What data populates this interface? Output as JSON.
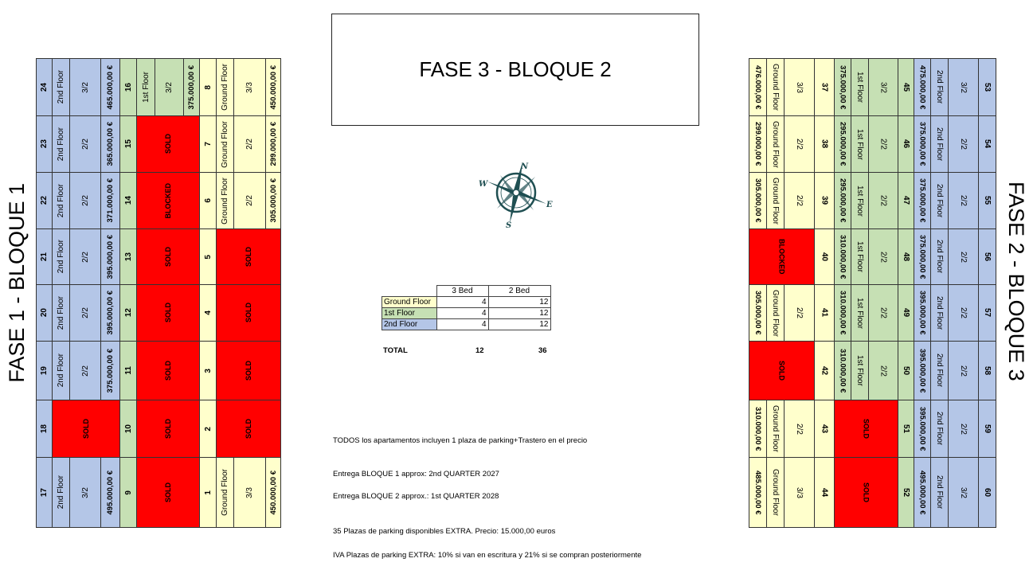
{
  "colors": {
    "second_floor": "#b4c6e7",
    "first_floor": "#c6e0b4",
    "ground_floor": "#ffffcc",
    "unavailable": "#ff0000"
  },
  "side_titles": {
    "left": "FASE 1 - BLOQUE 1",
    "right": "FASE 2 - BLOQUE 3"
  },
  "title": "FASE 3 - BLOQUE 2",
  "compass": {
    "icon": "compass-rose-icon",
    "n": "N",
    "e": "E",
    "s": "S",
    "w": "W"
  },
  "left_block": {
    "groups": [
      {
        "color": "second_floor",
        "units": [
          {
            "num": "24",
            "floor": "2nd Floor",
            "type": "3/2",
            "price": "465.000,00 €"
          },
          {
            "num": "23",
            "floor": "2nd Floor",
            "type": "2/2",
            "price": "365.000,00 €"
          },
          {
            "num": "22",
            "floor": "2nd Floor",
            "type": "2/2",
            "price": "371.000,00 €"
          },
          {
            "num": "21",
            "floor": "2nd Floor",
            "type": "2/2",
            "price": "395.000,00 €"
          },
          {
            "num": "20",
            "floor": "2nd Floor",
            "type": "2/2",
            "price": "395.000,00 €"
          },
          {
            "num": "19",
            "floor": "2nd Floor",
            "type": "2/2",
            "price": "375.000,00 €"
          },
          {
            "num": "18",
            "status": "SOLD"
          },
          {
            "num": "17",
            "floor": "2nd Floor",
            "type": "3/2",
            "price": "495.000,00 €"
          }
        ]
      },
      {
        "color": "first_floor",
        "units": [
          {
            "num": "16",
            "floor": "1st Floor",
            "type": "3/2",
            "price": "375.000,00 €"
          },
          {
            "num": "15",
            "status": "SOLD"
          },
          {
            "num": "14",
            "status": "BLOCKED"
          },
          {
            "num": "13",
            "status": "SOLD"
          },
          {
            "num": "12",
            "status": "SOLD"
          },
          {
            "num": "11",
            "status": "SOLD"
          },
          {
            "num": "10",
            "status": "SOLD"
          },
          {
            "num": "9",
            "status": "SOLD"
          }
        ]
      },
      {
        "color": "ground_floor",
        "units": [
          {
            "num": "8",
            "floor": "Ground Floor",
            "type": "3/3",
            "price": "450.000,00 €"
          },
          {
            "num": "7",
            "floor": "Ground Floor",
            "type": "2/2",
            "price": "299.000,00 €"
          },
          {
            "num": "6",
            "floor": "Ground Floor",
            "type": "2/2",
            "price": "305.000,00 €"
          },
          {
            "num": "5",
            "status": "SOLD"
          },
          {
            "num": "4",
            "status": "SOLD"
          },
          {
            "num": "3",
            "status": "SOLD"
          },
          {
            "num": "2",
            "status": "SOLD"
          },
          {
            "num": "1",
            "floor": "Ground Floor",
            "type": "3/3",
            "price": "450.000,00 €"
          }
        ]
      }
    ]
  },
  "right_block": {
    "groups": [
      {
        "color": "ground_floor",
        "units": [
          {
            "num": "37",
            "floor": "Ground Floor",
            "type": "3/3",
            "price": "476.000,00 €"
          },
          {
            "num": "38",
            "floor": "Ground Floor",
            "type": "2/2",
            "price": "299.000,00 €"
          },
          {
            "num": "39",
            "floor": "Ground Floor",
            "type": "2/2",
            "price": "305.000,00 €"
          },
          {
            "num": "40",
            "status": "BLOCKED"
          },
          {
            "num": "41",
            "floor": "Ground Floor",
            "type": "2/2",
            "price": "305.000,00 €"
          },
          {
            "num": "42",
            "status": "SOLD"
          },
          {
            "num": "43",
            "floor": "Ground Floor",
            "type": "2/2",
            "price": "310.000,00 €"
          },
          {
            "num": "44",
            "floor": "Ground Floor",
            "type": "3/3",
            "price": "485.000,00 €"
          }
        ]
      },
      {
        "color": "first_floor",
        "units": [
          {
            "num": "45",
            "floor": "1st Floor",
            "type": "3/2",
            "price": "375.000,00 €"
          },
          {
            "num": "46",
            "floor": "1st Floor",
            "type": "2/2",
            "price": "295.000,00 €"
          },
          {
            "num": "47",
            "floor": "1st Floor",
            "type": "2/2",
            "price": "295.000,00 €"
          },
          {
            "num": "48",
            "floor": "1st Floor",
            "type": "2/2",
            "price": "310.000,00 €"
          },
          {
            "num": "49",
            "floor": "1st Floor",
            "type": "2/2",
            "price": "310.000,00 €"
          },
          {
            "num": "50",
            "floor": "1st Floor",
            "type": "2/2",
            "price": "310.000,00 €"
          },
          {
            "num": "51",
            "status": "SOLD"
          },
          {
            "num": "52",
            "status": "SOLD"
          }
        ]
      },
      {
        "color": "second_floor",
        "units": [
          {
            "num": "53",
            "floor": "2nd Floor",
            "type": "3/2",
            "price": "475.000,00 €"
          },
          {
            "num": "54",
            "floor": "2nd Floor",
            "type": "2/2",
            "price": "375.000,00 €"
          },
          {
            "num": "55",
            "floor": "2nd Floor",
            "type": "2/2",
            "price": "375.000,00 €"
          },
          {
            "num": "56",
            "floor": "2nd Floor",
            "type": "2/2",
            "price": "375.000,00 €"
          },
          {
            "num": "57",
            "floor": "2nd Floor",
            "type": "2/2",
            "price": "395.000,00 €"
          },
          {
            "num": "58",
            "floor": "2nd Floor",
            "type": "2/2",
            "price": "395.000,00 €"
          },
          {
            "num": "59",
            "floor": "2nd Floor",
            "type": "2/2",
            "price": "395.000,00 €"
          },
          {
            "num": "60",
            "floor": "2nd Floor",
            "type": "3/2",
            "price": "495.000,00 €"
          }
        ]
      }
    ]
  },
  "summary": {
    "headers": [
      "3 Bed",
      "2 Bed"
    ],
    "rows": [
      {
        "label": "Ground Floor",
        "color": "ground_floor",
        "bed3": "4",
        "bed2": "12"
      },
      {
        "label": "1st Floor",
        "color": "first_floor",
        "bed3": "4",
        "bed2": "12"
      },
      {
        "label": "2nd Floor",
        "color": "second_floor",
        "bed3": "4",
        "bed2": "12"
      }
    ],
    "total_label": "TOTAL",
    "total_bed3": "12",
    "total_bed2": "36"
  },
  "notes": [
    "TODOS los apartamentos incluyen 1 plaza de parking+Trastero en el precio",
    "Entrega BLOQUE 1 approx: 2nd QUARTER 2027",
    "Entrega BLOQUE 2 approx.: 1st QUARTER 2028",
    "35 Plazas de parking disponibles EXTRA. Precio: 15.000,00 euros",
    "IVA Plazas de parking EXTRA: 10% si van en escritura y 21% si se compran posteriormente"
  ]
}
